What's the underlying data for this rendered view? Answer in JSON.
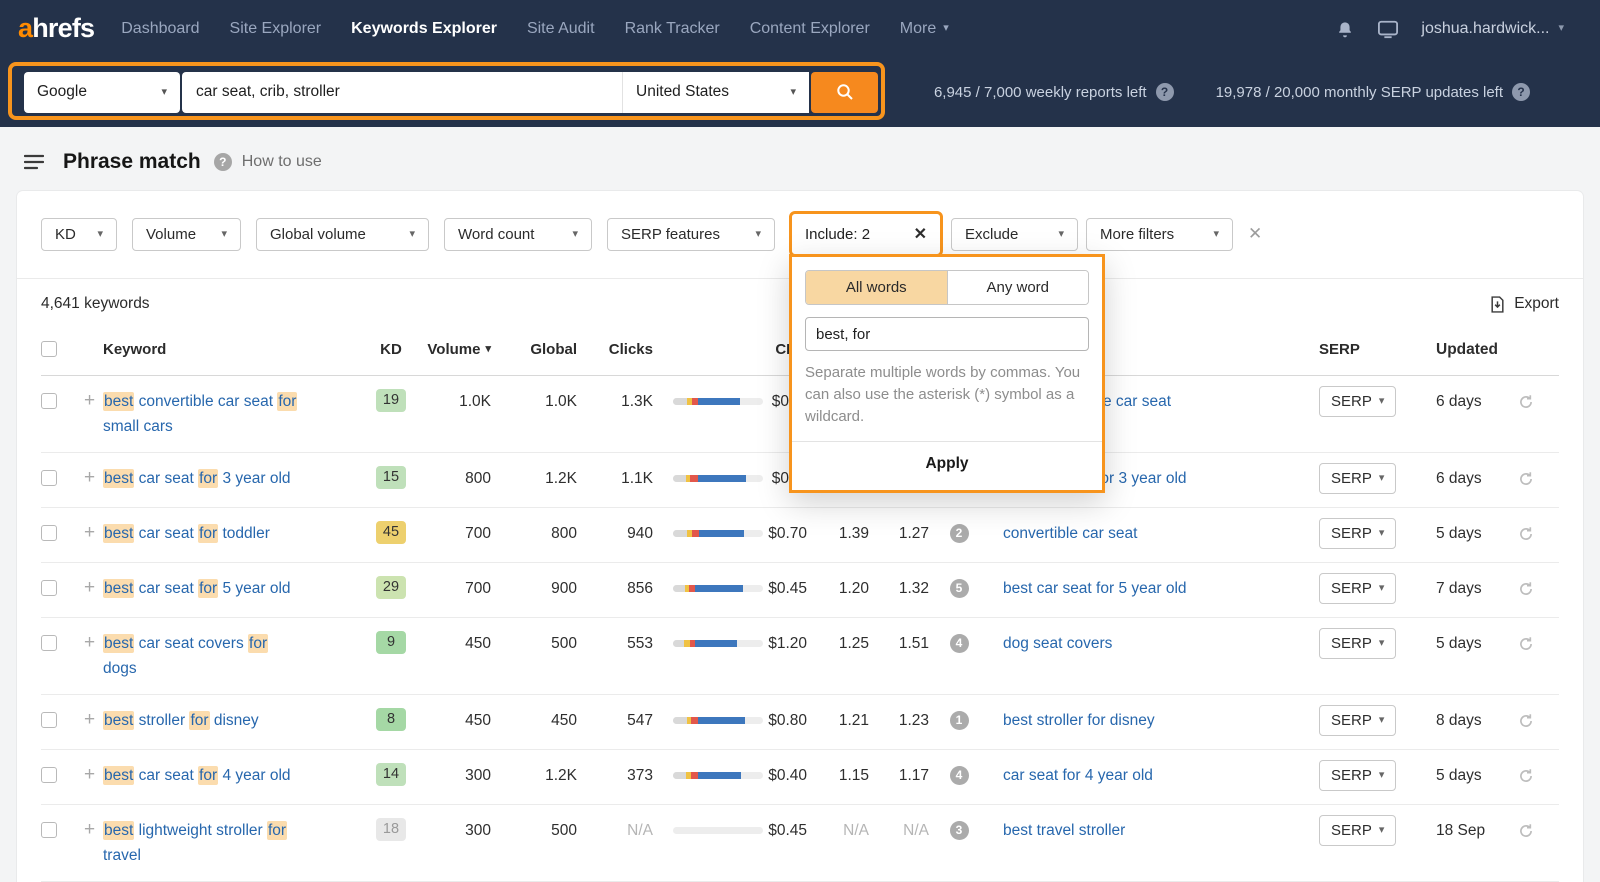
{
  "colors": {
    "accent": "#f7941d",
    "navbar_bg": "#24324a",
    "link": "#2767ad",
    "highlight": "#fbdcae",
    "bar_lead": "#d9d9d9",
    "bar_yellow": "#f0c243",
    "bar_red": "#e2574b",
    "bar_blue": "#3d77bd",
    "bar_track": "#ededed"
  },
  "navbar": {
    "logo_accent": "a",
    "logo_rest": "hrefs",
    "items": [
      "Dashboard",
      "Site Explorer",
      "Keywords Explorer",
      "Site Audit",
      "Rank Tracker",
      "Content Explorer",
      "More"
    ],
    "active_item": "Keywords Explorer",
    "user": "joshua.hardwick..."
  },
  "searchbar": {
    "engine": "Google",
    "query": "car seat, crib, stroller",
    "country": "United States",
    "weekly_reports": "6,945 / 7,000 weekly reports left",
    "serp_updates": "19,978 / 20,000 monthly SERP updates left"
  },
  "page": {
    "title": "Phrase match",
    "howto": "How to use"
  },
  "filters": {
    "kd": "KD",
    "volume": "Volume",
    "global_volume": "Global volume",
    "word_count": "Word count",
    "serp_features": "SERP features",
    "include": "Include: 2",
    "exclude": "Exclude",
    "more_filters": "More filters"
  },
  "include_popup": {
    "tab_all": "All words",
    "tab_any": "Any word",
    "value": "best, for",
    "hint": "Separate multiple words by commas. You can also use the asterisk (*) symbol as a wildcard.",
    "apply": "Apply"
  },
  "toolbar": {
    "count": "4,641 keywords",
    "export": "Export"
  },
  "table": {
    "serp_button": "SERP",
    "headers": {
      "keyword": "Keyword",
      "kd": "KD",
      "volume": "Volume",
      "global": "Global",
      "clicks": "Clicks",
      "cpc": "CPC",
      "serp": "SERP",
      "updated": "Updated"
    },
    "rows": [
      {
        "keyword": [
          {
            "t": "best",
            "h": true
          },
          {
            "t": " convertible car seat ",
            "h": false
          },
          {
            "t": "for",
            "h": true
          },
          {
            "br": true
          },
          {
            "t": "small cars",
            "h": false
          }
        ],
        "kd": "19",
        "kd_bg": "#bfe0ba",
        "kd_fg": "#333333",
        "volume": "1.0K",
        "global": "1.0K",
        "clicks": "1.3K",
        "bar": {
          "lead": 16,
          "yellow": 5,
          "red": 7,
          "blue": 47
        },
        "cpc": "$0",
        "cpc_pad": true,
        "cps": "",
        "rr": "",
        "sf": "",
        "parent": "best convertible car seat",
        "updated": "6 days"
      },
      {
        "keyword": [
          {
            "t": "best",
            "h": true
          },
          {
            "t": " car seat ",
            "h": false
          },
          {
            "t": "for",
            "h": true
          },
          {
            "t": " 3 year old",
            "h": false
          }
        ],
        "kd": "15",
        "kd_bg": "#bfe0ba",
        "kd_fg": "#333333",
        "volume": "800",
        "global": "1.2K",
        "clicks": "1.1K",
        "bar": {
          "lead": 14,
          "yellow": 5,
          "red": 9,
          "blue": 53
        },
        "cpc": "$0",
        "cpc_pad": true,
        "cps": "",
        "rr": "",
        "sf": "",
        "parent": "best car seat for 3 year old",
        "updated": "6 days"
      },
      {
        "keyword": [
          {
            "t": "best",
            "h": true
          },
          {
            "t": " car seat ",
            "h": false
          },
          {
            "t": "for",
            "h": true
          },
          {
            "t": " toddler",
            "h": false
          }
        ],
        "kd": "45",
        "kd_bg": "#edd06e",
        "kd_fg": "#333333",
        "volume": "700",
        "global": "800",
        "clicks": "940",
        "bar": {
          "lead": 15,
          "yellow": 6,
          "red": 8,
          "blue": 50
        },
        "cpc": "$0.70",
        "cps": "1.39",
        "rr": "1.27",
        "sf": "2",
        "parent": "convertible car seat",
        "updated": "5 days"
      },
      {
        "keyword": [
          {
            "t": "best",
            "h": true
          },
          {
            "t": " car seat ",
            "h": false
          },
          {
            "t": "for",
            "h": true
          },
          {
            "t": " 5 year old",
            "h": false
          }
        ],
        "kd": "29",
        "kd_bg": "#cce3b0",
        "kd_fg": "#333333",
        "volume": "700",
        "global": "900",
        "clicks": "856",
        "bar": {
          "lead": 13,
          "yellow": 5,
          "red": 7,
          "blue": 53
        },
        "cpc": "$0.45",
        "cps": "1.20",
        "rr": "1.32",
        "sf": "5",
        "parent": "best car seat for 5 year old",
        "updated": "7 days"
      },
      {
        "keyword": [
          {
            "t": "best",
            "h": true
          },
          {
            "t": " car seat covers ",
            "h": false
          },
          {
            "t": "for",
            "h": true
          },
          {
            "br": true
          },
          {
            "t": "dogs",
            "h": false
          }
        ],
        "kd": "9",
        "kd_bg": "#a5d8a5",
        "kd_fg": "#333333",
        "volume": "450",
        "global": "500",
        "clicks": "553",
        "bar": {
          "lead": 12,
          "yellow": 7,
          "red": 6,
          "blue": 46
        },
        "cpc": "$1.20",
        "cps": "1.25",
        "rr": "1.51",
        "sf": "4",
        "parent": "dog seat covers",
        "updated": "5 days"
      },
      {
        "keyword": [
          {
            "t": "best",
            "h": true
          },
          {
            "t": " stroller ",
            "h": false
          },
          {
            "t": "for",
            "h": true
          },
          {
            "t": " disney",
            "h": false
          }
        ],
        "kd": "8",
        "kd_bg": "#a5d8a5",
        "kd_fg": "#333333",
        "volume": "450",
        "global": "450",
        "clicks": "547",
        "bar": {
          "lead": 15,
          "yellow": 5,
          "red": 8,
          "blue": 52
        },
        "cpc": "$0.80",
        "cps": "1.21",
        "rr": "1.23",
        "sf": "1",
        "parent": "best stroller for disney",
        "updated": "8 days"
      },
      {
        "keyword": [
          {
            "t": "best",
            "h": true
          },
          {
            "t": " car seat ",
            "h": false
          },
          {
            "t": "for",
            "h": true
          },
          {
            "t": " 4 year old",
            "h": false
          }
        ],
        "kd": "14",
        "kd_bg": "#bfe0ba",
        "kd_fg": "#333333",
        "volume": "300",
        "global": "1.2K",
        "clicks": "373",
        "bar": {
          "lead": 14,
          "yellow": 6,
          "red": 8,
          "blue": 48
        },
        "cpc": "$0.40",
        "cps": "1.15",
        "rr": "1.17",
        "sf": "4",
        "parent": "car seat for 4 year old",
        "updated": "5 days"
      },
      {
        "keyword": [
          {
            "t": "best",
            "h": true
          },
          {
            "t": " lightweight stroller ",
            "h": false
          },
          {
            "t": "for",
            "h": true
          },
          {
            "br": true
          },
          {
            "t": "travel",
            "h": false
          }
        ],
        "kd": "18",
        "kd_bg": "#e8e8e8",
        "kd_fg": "#9a9a9a",
        "volume": "300",
        "global": "500",
        "clicks": "N/A",
        "bar": {
          "lead": 0,
          "yellow": 0,
          "red": 0,
          "blue": 0
        },
        "cpc": "$0.45",
        "cps": "N/A",
        "rr": "N/A",
        "sf": "3",
        "parent": "best travel stroller",
        "updated": "18 Sep"
      }
    ]
  }
}
